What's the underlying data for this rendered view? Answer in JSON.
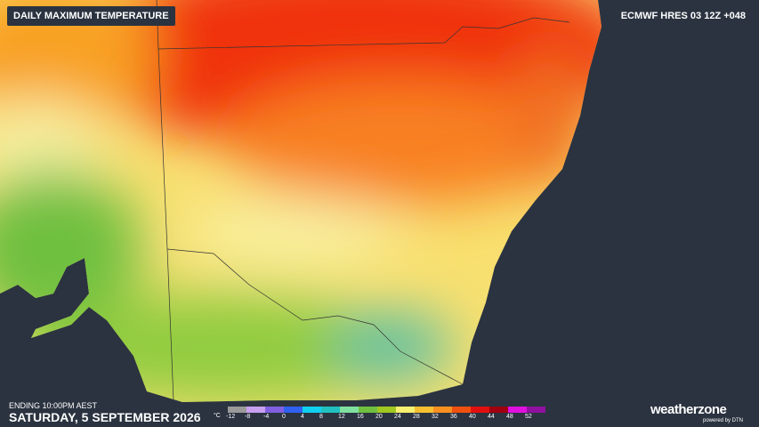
{
  "header": {
    "title": "DAILY MAXIMUM TEMPERATURE",
    "model": "ECMWF HRES 03 12Z +048"
  },
  "footer": {
    "ending": "ENDING 10:00PM AEST",
    "date": "SATURDAY, 5 SEPTEMBER 2026",
    "brand": "weatherzone",
    "powered": "powered by DTN"
  },
  "legend": {
    "unit": "°C",
    "ticks": [
      -12,
      -8,
      -4,
      0,
      4,
      8,
      12,
      16,
      20,
      24,
      28,
      32,
      36,
      40,
      44,
      48,
      52
    ],
    "colors": [
      "#9a9a9a",
      "#c9a0f0",
      "#8060e0",
      "#3060f0",
      "#10d0f0",
      "#20c0c0",
      "#80e0a0",
      "#70c040",
      "#a0c820",
      "#f8f070",
      "#f8c030",
      "#f89020",
      "#f05010",
      "#e01010",
      "#a00010",
      "#e010e0",
      "#9010a0"
    ]
  }
}
